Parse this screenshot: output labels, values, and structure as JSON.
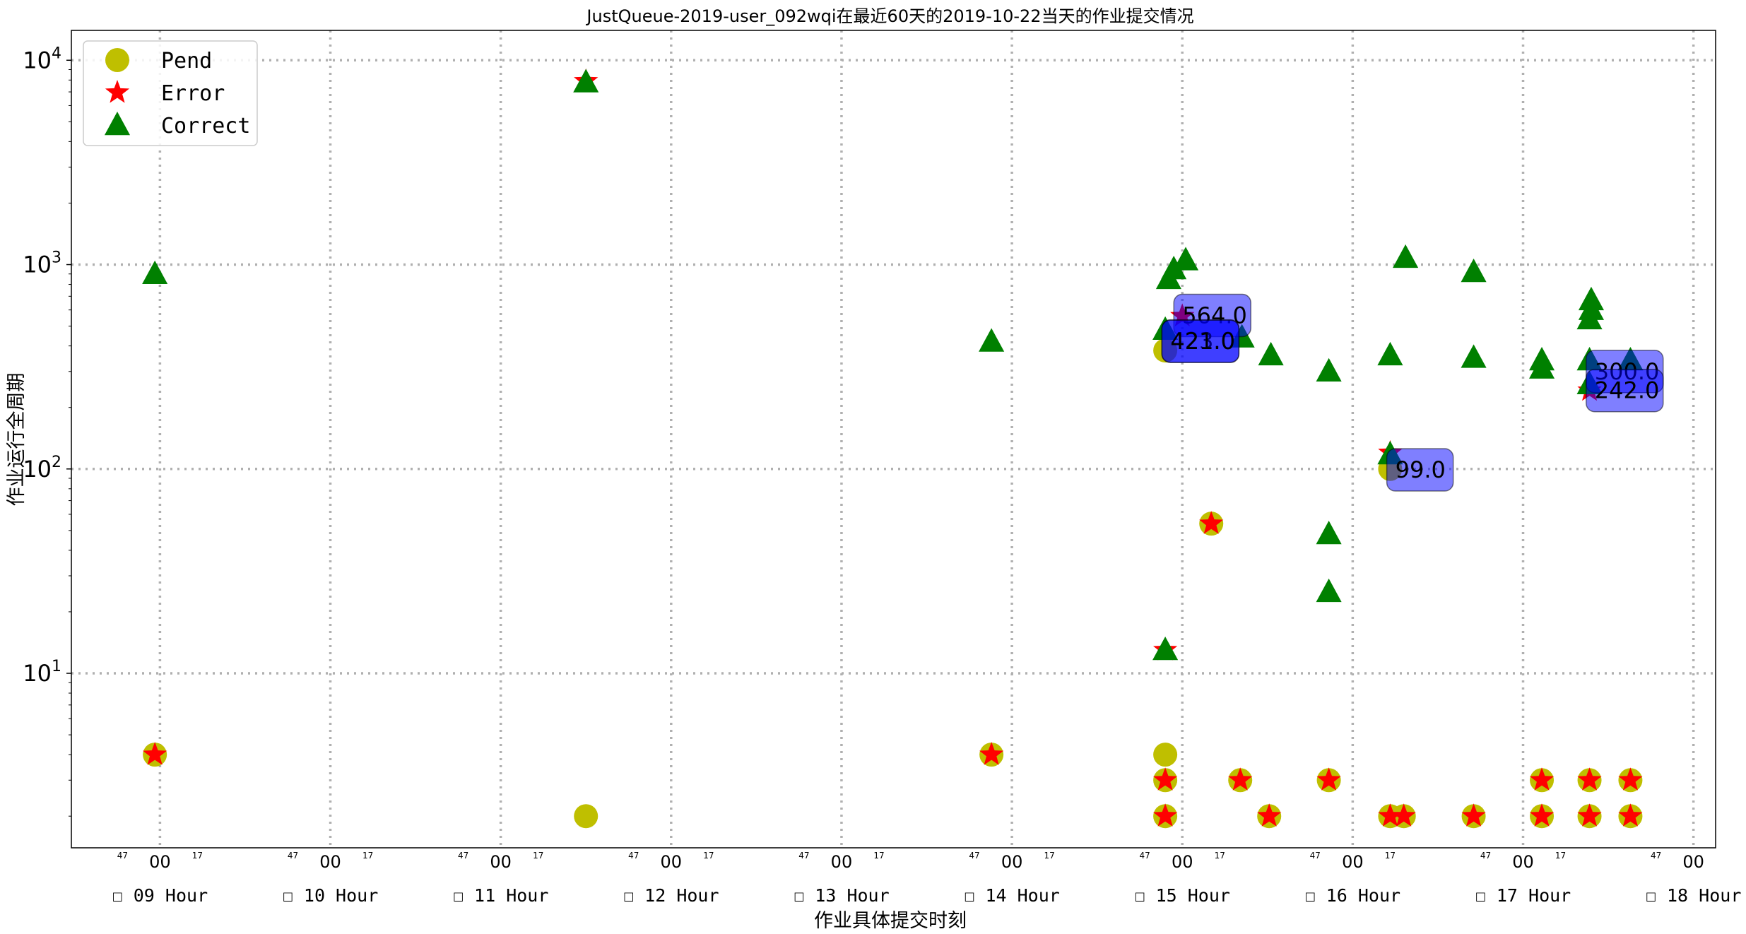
{
  "chart_data": {
    "type": "scatter",
    "title": "JustQueue-2019-user_092wqi在最近60天的2019-10-22当天的作业提交情况",
    "xlabel": "作业具体提交时刻",
    "ylabel": "作业运行全周期",
    "y_scale": "log",
    "ylim": [
      1.4,
      14000
    ],
    "y_ticks": [
      {
        "value": 10,
        "label": "10",
        "exp": "1"
      },
      {
        "value": 100,
        "label": "10",
        "exp": "2"
      },
      {
        "value": 1000,
        "label": "10",
        "exp": "3"
      },
      {
        "value": 10000,
        "label": "10",
        "exp": "4"
      }
    ],
    "xlim": [
      8.48,
      18.13
    ],
    "x_major_ticks": [
      {
        "value": 9,
        "label": "00",
        "hour_label": "☐ 09 Hour"
      },
      {
        "value": 10,
        "label": "00",
        "hour_label": "☐ 10 Hour"
      },
      {
        "value": 11,
        "label": "00",
        "hour_label": "☐ 11 Hour"
      },
      {
        "value": 12,
        "label": "00",
        "hour_label": "☐ 12 Hour"
      },
      {
        "value": 13,
        "label": "00",
        "hour_label": "☐ 13 Hour"
      },
      {
        "value": 14,
        "label": "00",
        "hour_label": "☐ 14 Hour"
      },
      {
        "value": 15,
        "label": "00",
        "hour_label": "☐ 15 Hour"
      },
      {
        "value": 16,
        "label": "00",
        "hour_label": "☐ 16 Hour"
      },
      {
        "value": 17,
        "label": "00",
        "hour_label": "☐ 17 Hour"
      },
      {
        "value": 18,
        "label": "00",
        "hour_label": "☐ 18 Hour"
      }
    ],
    "x_minor_labels": {
      "before": "47",
      "after": "17"
    },
    "grid": true,
    "legend": {
      "position": "top-left",
      "entries": [
        "Pend",
        "Error",
        "Correct"
      ]
    },
    "series": [
      {
        "name": "Pend",
        "marker": "circle",
        "color": "#bfbf00",
        "points": [
          [
            8.97,
            4
          ],
          [
            11.5,
            2
          ],
          [
            13.88,
            4
          ],
          [
            14.9,
            4
          ],
          [
            14.9,
            3
          ],
          [
            14.9,
            2
          ],
          [
            15.17,
            54
          ],
          [
            15.34,
            3
          ],
          [
            15.51,
            2
          ],
          [
            15.86,
            3
          ],
          [
            16.22,
            2
          ],
          [
            16.3,
            2
          ],
          [
            16.71,
            2
          ],
          [
            17.11,
            3
          ],
          [
            17.11,
            2
          ],
          [
            17.39,
            3
          ],
          [
            17.39,
            2
          ],
          [
            17.63,
            3
          ],
          [
            17.63,
            2
          ],
          [
            16.22,
            100
          ],
          [
            14.9,
            380
          ]
        ]
      },
      {
        "name": "Error",
        "marker": "star",
        "color": "#ff0000",
        "points": [
          [
            8.97,
            4
          ],
          [
            11.5,
            7900
          ],
          [
            13.88,
            4
          ],
          [
            14.9,
            3
          ],
          [
            14.9,
            2
          ],
          [
            14.9,
            13
          ],
          [
            15.17,
            54
          ],
          [
            15.34,
            3
          ],
          [
            15.51,
            2
          ],
          [
            15.86,
            3
          ],
          [
            16.22,
            2
          ],
          [
            16.3,
            2
          ],
          [
            16.71,
            2
          ],
          [
            17.11,
            3
          ],
          [
            17.11,
            2
          ],
          [
            17.39,
            3
          ],
          [
            17.39,
            2
          ],
          [
            17.63,
            3
          ],
          [
            17.63,
            2
          ],
          [
            17.39,
            242
          ],
          [
            16.22,
            120
          ],
          [
            15.0,
            560
          ]
        ]
      },
      {
        "name": "Correct",
        "marker": "triangle",
        "color": "#008000",
        "points": [
          [
            8.97,
            900
          ],
          [
            11.5,
            7800
          ],
          [
            13.88,
            420
          ],
          [
            14.9,
            13
          ],
          [
            14.9,
            480
          ],
          [
            14.92,
            850
          ],
          [
            14.95,
            950
          ],
          [
            15.02,
            1050
          ],
          [
            15.35,
            440
          ],
          [
            15.52,
            360
          ],
          [
            15.86,
            300
          ],
          [
            15.86,
            48
          ],
          [
            15.86,
            25
          ],
          [
            16.22,
            360
          ],
          [
            16.31,
            1080
          ],
          [
            16.71,
            920
          ],
          [
            16.71,
            350
          ],
          [
            17.11,
            340
          ],
          [
            17.11,
            310
          ],
          [
            17.4,
            670
          ],
          [
            17.4,
            600
          ],
          [
            17.39,
            540
          ],
          [
            17.39,
            340
          ],
          [
            17.63,
            340
          ],
          [
            16.22,
            118
          ],
          [
            17.39,
            260
          ]
        ]
      }
    ],
    "annotations": [
      {
        "text": "564.0",
        "x": 15.0,
        "y": 564
      },
      {
        "text": "423.0",
        "x": 14.93,
        "y": 423
      },
      {
        "text": "421.0",
        "x": 14.93,
        "y": 421
      },
      {
        "text": "300.0",
        "x": 17.42,
        "y": 300
      },
      {
        "text": "242.0",
        "x": 17.42,
        "y": 242
      },
      {
        "text": "99.0",
        "x": 16.25,
        "y": 99
      }
    ]
  }
}
